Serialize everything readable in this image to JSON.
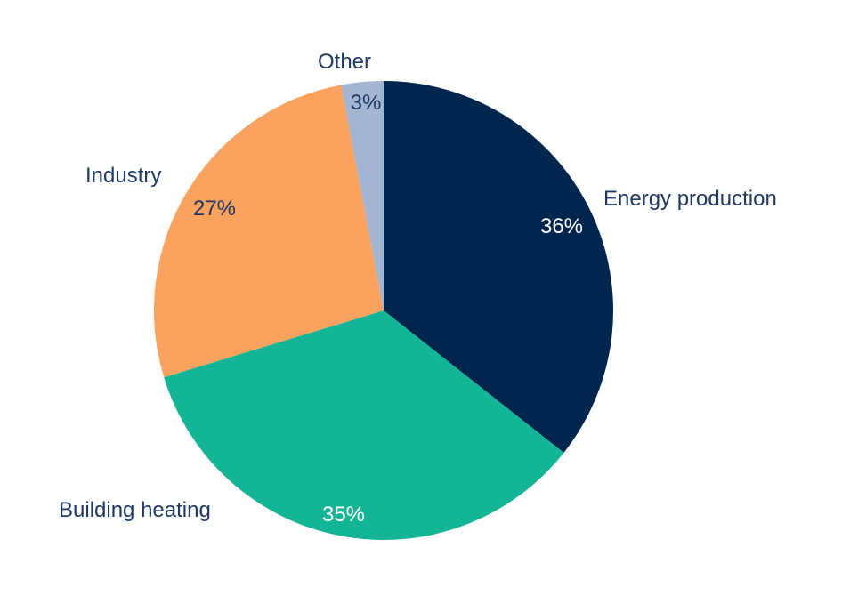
{
  "chart_data": {
    "type": "pie",
    "categories": [
      "Energy production",
      "Building heating",
      "Industry",
      "Other"
    ],
    "values": [
      36,
      35,
      27,
      3
    ],
    "value_labels": [
      "36%",
      "35%",
      "27%",
      "3%"
    ],
    "colors": [
      "#00264d",
      "#13b596",
      "#fba25f",
      "#a4b5d2"
    ],
    "label_text_colors": [
      "#ffffff",
      "#ffffff",
      "#1f3864",
      "#1f3864"
    ],
    "category_text_color": "#1f3864",
    "start": "12 o'clock, clockwise",
    "legend": "none"
  }
}
